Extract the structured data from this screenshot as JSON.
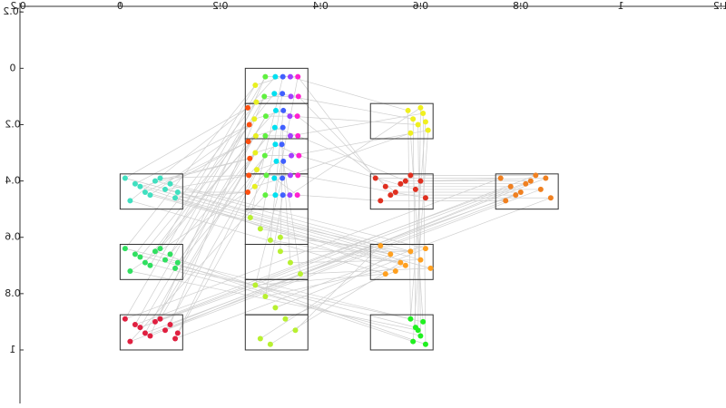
{
  "chart_data": {
    "type": "scatter",
    "xlim": [
      -0.2,
      1.21
    ],
    "ylim": [
      -0.22,
      1.19
    ],
    "xticks": [
      -0.2,
      0,
      0.2,
      0.4,
      0.6,
      0.8,
      1,
      1.2
    ],
    "yticks": [
      -0.2,
      0,
      0.2,
      0.4,
      0.6,
      0.8,
      1
    ],
    "series": [
      {
        "color": "#40e0c0",
        "x": [
          0.01,
          0.03,
          0.05,
          0.07,
          0.09,
          0.11,
          0.02,
          0.06,
          0.1,
          0.04,
          0.08,
          0.115
        ],
        "values": [
          0.39,
          0.41,
          0.44,
          0.4,
          0.43,
          0.46,
          0.47,
          0.45,
          0.41,
          0.42,
          0.39,
          0.44
        ]
      },
      {
        "color": "#30e060",
        "x": [
          0.01,
          0.03,
          0.05,
          0.07,
          0.09,
          0.11,
          0.02,
          0.06,
          0.1,
          0.04,
          0.08,
          0.115
        ],
        "values": [
          0.64,
          0.66,
          0.69,
          0.65,
          0.68,
          0.71,
          0.72,
          0.7,
          0.66,
          0.67,
          0.64,
          0.69
        ]
      },
      {
        "color": "#e02040",
        "x": [
          0.01,
          0.03,
          0.05,
          0.07,
          0.09,
          0.11,
          0.02,
          0.06,
          0.1,
          0.04,
          0.08,
          0.115
        ],
        "values": [
          0.89,
          0.91,
          0.94,
          0.9,
          0.93,
          0.96,
          0.97,
          0.95,
          0.91,
          0.92,
          0.89,
          0.94
        ]
      },
      {
        "color": "#ff5010",
        "x": [
          0.255,
          0.258,
          0.256,
          0.259,
          0.257,
          0.255
        ],
        "values": [
          0.14,
          0.2,
          0.26,
          0.32,
          0.38,
          0.44
        ]
      },
      {
        "color": "#e8f020",
        "x": [
          0.27,
          0.272,
          0.268,
          0.271,
          0.27,
          0.273,
          0.269
        ],
        "values": [
          0.06,
          0.12,
          0.18,
          0.24,
          0.3,
          0.36,
          0.42
        ]
      },
      {
        "color": "#60f040",
        "x": [
          0.29,
          0.288,
          0.291,
          0.29,
          0.289,
          0.292,
          0.29
        ],
        "values": [
          0.03,
          0.1,
          0.17,
          0.24,
          0.31,
          0.38,
          0.45
        ]
      },
      {
        "color": "#00e0f0",
        "x": [
          0.31,
          0.308,
          0.311,
          0.309,
          0.31,
          0.312,
          0.308,
          0.31
        ],
        "values": [
          0.03,
          0.09,
          0.15,
          0.21,
          0.27,
          0.33,
          0.39,
          0.45
        ]
      },
      {
        "color": "#4060ff",
        "x": [
          0.325,
          0.324,
          0.326,
          0.325,
          0.323,
          0.326,
          0.324,
          0.325
        ],
        "values": [
          0.03,
          0.09,
          0.15,
          0.21,
          0.27,
          0.33,
          0.39,
          0.45
        ]
      },
      {
        "color": "#a040ff",
        "x": [
          0.34,
          0.341,
          0.339,
          0.34,
          0.342,
          0.34,
          0.339
        ],
        "values": [
          0.03,
          0.1,
          0.17,
          0.24,
          0.31,
          0.38,
          0.45
        ]
      },
      {
        "color": "#ff20d0",
        "x": [
          0.355,
          0.356,
          0.354,
          0.355,
          0.357,
          0.355,
          0.354
        ],
        "values": [
          0.03,
          0.1,
          0.17,
          0.24,
          0.31,
          0.38,
          0.45
        ]
      },
      {
        "color": "#b8f030",
        "x": [
          0.26,
          0.28,
          0.3,
          0.32,
          0.34,
          0.36,
          0.27,
          0.29,
          0.31,
          0.33,
          0.35,
          0.28,
          0.3,
          0.32
        ],
        "values": [
          0.53,
          0.57,
          0.61,
          0.65,
          0.69,
          0.73,
          0.77,
          0.81,
          0.85,
          0.89,
          0.93,
          0.96,
          0.98,
          0.6
        ]
      },
      {
        "color": "#f0f020",
        "x": [
          0.575,
          0.585,
          0.595,
          0.605,
          0.615,
          0.58,
          0.6,
          0.61
        ],
        "values": [
          0.15,
          0.18,
          0.2,
          0.16,
          0.22,
          0.23,
          0.14,
          0.19
        ]
      },
      {
        "color": "#e03020",
        "x": [
          0.51,
          0.53,
          0.55,
          0.57,
          0.59,
          0.61,
          0.52,
          0.56,
          0.6,
          0.54,
          0.58
        ],
        "values": [
          0.39,
          0.42,
          0.44,
          0.4,
          0.43,
          0.46,
          0.47,
          0.41,
          0.4,
          0.45,
          0.38
        ]
      },
      {
        "color": "#ffa020",
        "x": [
          0.52,
          0.54,
          0.56,
          0.58,
          0.6,
          0.62,
          0.53,
          0.57,
          0.61,
          0.55
        ],
        "values": [
          0.63,
          0.66,
          0.69,
          0.65,
          0.68,
          0.71,
          0.73,
          0.7,
          0.64,
          0.72
        ]
      },
      {
        "color": "#20f020",
        "x": [
          0.58,
          0.59,
          0.6,
          0.61,
          0.585,
          0.605,
          0.595
        ],
        "values": [
          0.89,
          0.92,
          0.95,
          0.98,
          0.97,
          0.9,
          0.93
        ]
      },
      {
        "color": "#f08020",
        "x": [
          0.76,
          0.78,
          0.8,
          0.82,
          0.84,
          0.86,
          0.77,
          0.81,
          0.85,
          0.79,
          0.83
        ],
        "values": [
          0.39,
          0.42,
          0.44,
          0.4,
          0.43,
          0.46,
          0.47,
          0.41,
          0.39,
          0.45,
          0.38
        ]
      }
    ]
  }
}
